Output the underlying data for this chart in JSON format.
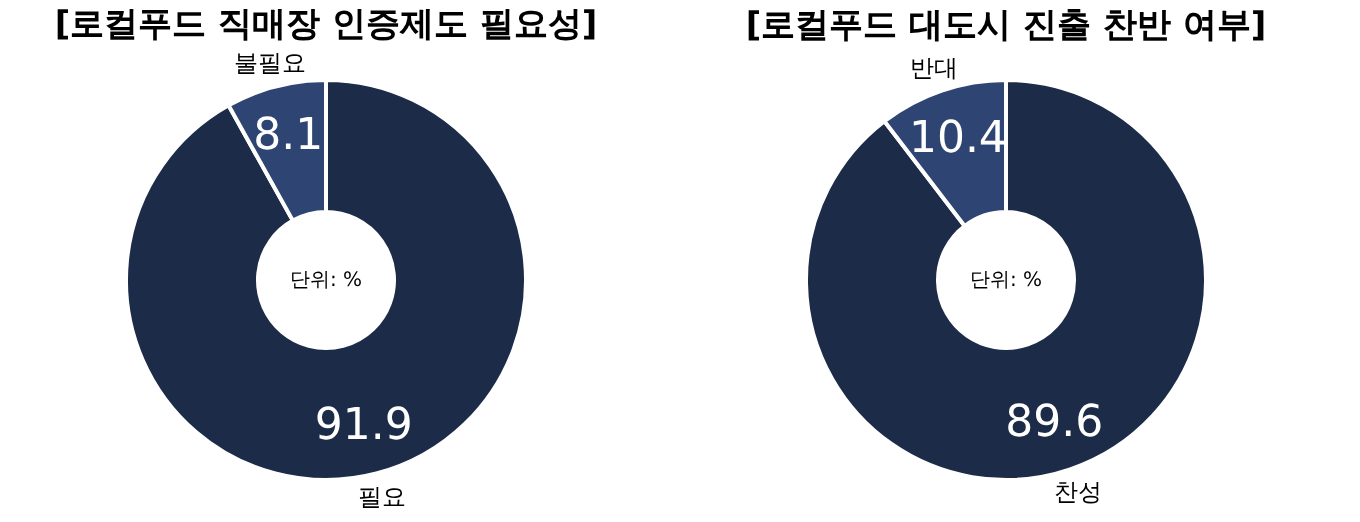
{
  "chart_data": [
    {
      "type": "donut",
      "title": "[로컬푸드 직매장 인증제도 필요성]",
      "categories": [
        "필요",
        "불필요"
      ],
      "values": [
        91.9,
        8.1
      ],
      "colors": [
        "#1c2b48",
        "#2e4472"
      ],
      "data_labels": true,
      "legend": false,
      "annotations": [
        "단위: %"
      ]
    },
    {
      "type": "donut",
      "title": "[로컬푸드 대도시 진출 찬반 여부]",
      "categories": [
        "찬성",
        "반대"
      ],
      "values": [
        89.6,
        10.4
      ],
      "colors": [
        "#1c2b48",
        "#2e4472"
      ],
      "data_labels": true,
      "legend": false,
      "annotations": [
        "단위: %"
      ]
    }
  ]
}
